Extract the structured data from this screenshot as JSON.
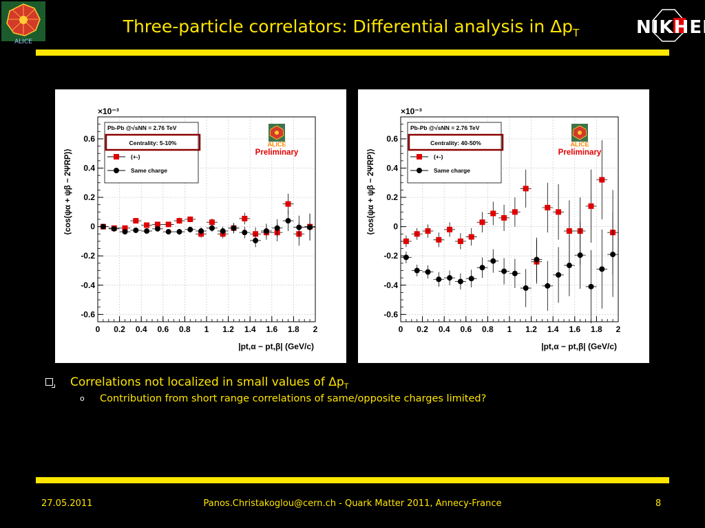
{
  "slide": {
    "title": "Three-particle correlators: Differential analysis in Δp",
    "title_sub": "T",
    "bullet_main": "Correlations not localized in small values of Δp",
    "bullet_main_sub": "T",
    "bullet_sub": "Contribution from short range correlations of same/opposite charges limited?",
    "footer_date": "27.05.2011",
    "footer_contact": "Panos.Christakoglou@cern.ch - Quark Matter 2011, Annecy-France",
    "footer_page": "8",
    "logo_left_text": "ALICE",
    "logo_right_text": "NIKHEF"
  },
  "colors": {
    "accent": "#ffe600",
    "opposite": "#e00000",
    "same": "#000000",
    "box": "#8b0000"
  },
  "chart_data": [
    {
      "type": "scatter",
      "collision": "Pb-Pb @√sNN = 2.76 TeV",
      "centrality": "Centrality: 5-10%",
      "label": "Preliminary",
      "logo_text": "ALICE",
      "exponent": "×10⁻³",
      "ylabel": "⟨cos(ψα + ψβ − 2ΨRP)⟩",
      "xlabel": "|pt,α − pt,β| (GeV/c)",
      "xlim": [
        0,
        2
      ],
      "ylim": [
        -0.65,
        0.75
      ],
      "xticks": [
        "0",
        "0.2",
        "0.4",
        "0.6",
        "0.8",
        "1",
        "1.2",
        "1.4",
        "1.6",
        "1.8",
        "2"
      ],
      "yticks": [
        "-0.6",
        "-0.4",
        "-0.2",
        "0",
        "0.2",
        "0.4",
        "0.6"
      ],
      "series": [
        {
          "name": "(+-)",
          "marker": "square",
          "color": "#e00000",
          "x": [
            0.05,
            0.15,
            0.25,
            0.35,
            0.45,
            0.55,
            0.65,
            0.75,
            0.85,
            0.95,
            1.05,
            1.15,
            1.25,
            1.35,
            1.45,
            1.55,
            1.65,
            1.75,
            1.85,
            1.95
          ],
          "y": [
            0.0,
            -0.01,
            -0.01,
            0.04,
            0.01,
            0.015,
            0.015,
            0.04,
            0.05,
            -0.05,
            0.03,
            -0.05,
            -0.01,
            0.055,
            -0.05,
            -0.04,
            -0.04,
            0.155,
            -0.05,
            0.0
          ],
          "err": [
            0.01,
            0.01,
            0.012,
            0.015,
            0.015,
            0.015,
            0.015,
            0.02,
            0.02,
            0.025,
            0.025,
            0.03,
            0.035,
            0.04,
            0.045,
            0.05,
            0.06,
            0.07,
            0.08,
            0.09
          ]
        },
        {
          "name": "Same charge",
          "marker": "circle",
          "color": "#000000",
          "x": [
            0.05,
            0.15,
            0.25,
            0.35,
            0.45,
            0.55,
            0.65,
            0.75,
            0.85,
            0.95,
            1.05,
            1.15,
            1.25,
            1.35,
            1.45,
            1.55,
            1.65,
            1.75,
            1.85,
            1.95
          ],
          "y": [
            0.0,
            -0.015,
            -0.035,
            -0.025,
            -0.03,
            -0.015,
            -0.035,
            -0.035,
            -0.02,
            -0.03,
            -0.01,
            -0.03,
            -0.01,
            -0.04,
            -0.095,
            -0.03,
            -0.01,
            0.04,
            -0.005,
            -0.005
          ],
          "err": [
            0.01,
            0.01,
            0.012,
            0.015,
            0.015,
            0.015,
            0.015,
            0.02,
            0.02,
            0.025,
            0.025,
            0.03,
            0.035,
            0.04,
            0.045,
            0.05,
            0.06,
            0.07,
            0.08,
            0.09
          ]
        }
      ]
    },
    {
      "type": "scatter",
      "collision": "Pb-Pb @√sNN = 2.76 TeV",
      "centrality": "Centrality: 40-50%",
      "label": "Preliminary",
      "logo_text": "ALICE",
      "exponent": "×10⁻³",
      "ylabel": "⟨cos(ψα + ψβ − 2ΨRP)⟩",
      "xlabel": "|pt,α − pt,β| (GeV/c)",
      "xlim": [
        0,
        2
      ],
      "ylim": [
        -0.65,
        0.75
      ],
      "xticks": [
        "0",
        "0.2",
        "0.4",
        "0.6",
        "0.8",
        "1",
        "1.2",
        "1.4",
        "1.6",
        "1.8",
        "2"
      ],
      "yticks": [
        "-0.6",
        "-0.4",
        "-0.2",
        "0",
        "0.2",
        "0.4",
        "0.6"
      ],
      "series": [
        {
          "name": "(+-)",
          "marker": "square",
          "color": "#e00000",
          "x": [
            0.05,
            0.15,
            0.25,
            0.35,
            0.45,
            0.55,
            0.65,
            0.75,
            0.85,
            0.95,
            1.05,
            1.15,
            1.25,
            1.35,
            1.45,
            1.55,
            1.65,
            1.75,
            1.85,
            1.95
          ],
          "y": [
            -0.1,
            -0.05,
            -0.03,
            -0.09,
            -0.02,
            -0.1,
            -0.07,
            0.03,
            0.09,
            0.06,
            0.1,
            0.26,
            -0.24,
            0.13,
            0.1,
            -0.03,
            -0.03,
            0.14,
            0.32,
            -0.04
          ],
          "err": [
            0.04,
            0.04,
            0.045,
            0.05,
            0.05,
            0.055,
            0.06,
            0.07,
            0.08,
            0.09,
            0.1,
            0.13,
            0.15,
            0.17,
            0.19,
            0.21,
            0.23,
            0.25,
            0.27,
            0.29
          ]
        },
        {
          "name": "Same charge",
          "marker": "circle",
          "color": "#000000",
          "x": [
            0.05,
            0.15,
            0.25,
            0.35,
            0.45,
            0.55,
            0.65,
            0.75,
            0.85,
            0.95,
            1.05,
            1.15,
            1.25,
            1.35,
            1.45,
            1.55,
            1.65,
            1.75,
            1.85,
            1.95
          ],
          "y": [
            -0.21,
            -0.3,
            -0.31,
            -0.36,
            -0.35,
            -0.375,
            -0.355,
            -0.28,
            -0.235,
            -0.305,
            -0.32,
            -0.42,
            -0.225,
            -0.405,
            -0.33,
            -0.265,
            -0.195,
            -0.41,
            -0.29,
            -0.19
          ],
          "err": [
            0.04,
            0.04,
            0.045,
            0.05,
            0.05,
            0.055,
            0.06,
            0.07,
            0.08,
            0.09,
            0.1,
            0.13,
            0.15,
            0.17,
            0.19,
            0.21,
            0.23,
            0.25,
            0.27,
            0.29
          ]
        }
      ]
    }
  ]
}
